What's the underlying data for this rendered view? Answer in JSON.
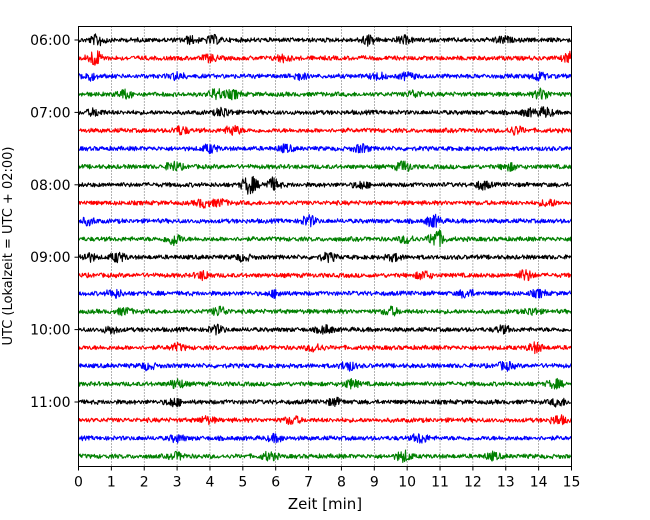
{
  "chart_data": {
    "type": "line",
    "xlabel": "Zeit  [min]",
    "ylabel": "UTC (Lokalzeit = UTC + 02:00)",
    "xlim": [
      0,
      15
    ],
    "x_ticks": [
      "0",
      "1",
      "2",
      "3",
      "4",
      "5",
      "6",
      "7",
      "8",
      "9",
      "10",
      "11",
      "12",
      "13",
      "14",
      "15"
    ],
    "y_tick_labels": [
      "06:00",
      "07:00",
      "08:00",
      "09:00",
      "10:00",
      "11:00"
    ],
    "grid": "vertical-dotted",
    "trace_interval_minutes": 15,
    "traces": [
      {
        "start": "06:00",
        "color": "#000000",
        "events": [
          [
            0.6,
            0.8
          ],
          [
            3.4,
            0.5
          ],
          [
            4.1,
            0.6
          ],
          [
            8.8,
            0.7
          ],
          [
            9.9,
            0.5
          ],
          [
            12.9,
            0.5
          ]
        ]
      },
      {
        "start": "06:15",
        "color": "#ff0000",
        "events": [
          [
            0.5,
            1.2
          ],
          [
            4.0,
            0.5
          ],
          [
            6.2,
            0.5
          ],
          [
            15.0,
            1.0
          ]
        ]
      },
      {
        "start": "06:30",
        "color": "#0000ff",
        "events": [
          [
            0.3,
            0.6
          ],
          [
            3.0,
            0.5
          ],
          [
            6.7,
            0.5
          ],
          [
            9.1,
            0.5
          ],
          [
            10.0,
            0.5
          ],
          [
            14.0,
            0.6
          ]
        ]
      },
      {
        "start": "06:45",
        "color": "#008000",
        "events": [
          [
            1.4,
            0.6
          ],
          [
            4.2,
            0.8
          ],
          [
            4.7,
            0.6
          ],
          [
            10.2,
            0.5
          ],
          [
            14.1,
            0.8
          ]
        ]
      },
      {
        "start": "07:00",
        "color": "#000000",
        "events": [
          [
            0.5,
            0.5
          ],
          [
            4.4,
            0.7
          ],
          [
            13.7,
            0.5
          ],
          [
            14.2,
            0.7
          ]
        ]
      },
      {
        "start": "07:15",
        "color": "#ff0000",
        "events": [
          [
            3.1,
            0.6
          ],
          [
            4.7,
            0.7
          ],
          [
            13.3,
            0.6
          ]
        ]
      },
      {
        "start": "07:30",
        "color": "#0000ff",
        "events": [
          [
            4.0,
            0.6
          ],
          [
            6.3,
            0.5
          ],
          [
            8.6,
            0.6
          ]
        ]
      },
      {
        "start": "07:45",
        "color": "#008000",
        "events": [
          [
            2.9,
            0.7
          ],
          [
            9.9,
            0.8
          ],
          [
            13.1,
            0.5
          ]
        ]
      },
      {
        "start": "08:00",
        "color": "#000000",
        "events": [
          [
            5.2,
            1.4
          ],
          [
            5.9,
            0.9
          ],
          [
            8.6,
            0.5
          ],
          [
            12.3,
            0.6
          ]
        ]
      },
      {
        "start": "08:15",
        "color": "#ff0000",
        "events": [
          [
            3.8,
            0.6
          ],
          [
            4.3,
            0.5
          ],
          [
            14.3,
            0.5
          ]
        ]
      },
      {
        "start": "08:30",
        "color": "#0000ff",
        "events": [
          [
            0.3,
            0.5
          ],
          [
            7.0,
            0.8
          ],
          [
            10.8,
            0.9
          ]
        ]
      },
      {
        "start": "08:45",
        "color": "#008000",
        "events": [
          [
            2.9,
            0.9
          ],
          [
            10.0,
            0.6
          ],
          [
            10.9,
            1.4
          ]
        ]
      },
      {
        "start": "09:00",
        "color": "#000000",
        "events": [
          [
            0.3,
            0.6
          ],
          [
            1.2,
            0.7
          ],
          [
            5.0,
            0.5
          ],
          [
            7.6,
            0.6
          ],
          [
            9.6,
            0.5
          ]
        ]
      },
      {
        "start": "09:15",
        "color": "#ff0000",
        "events": [
          [
            3.8,
            0.6
          ],
          [
            10.5,
            0.6
          ],
          [
            13.6,
            0.8
          ]
        ]
      },
      {
        "start": "09:30",
        "color": "#0000ff",
        "events": [
          [
            1.1,
            0.6
          ],
          [
            6.0,
            0.5
          ],
          [
            11.8,
            0.6
          ],
          [
            14.0,
            0.5
          ]
        ]
      },
      {
        "start": "09:45",
        "color": "#008000",
        "events": [
          [
            1.4,
            0.5
          ],
          [
            4.3,
            0.7
          ],
          [
            9.5,
            0.6
          ],
          [
            13.8,
            0.5
          ]
        ]
      },
      {
        "start": "10:00",
        "color": "#000000",
        "events": [
          [
            1.0,
            0.5
          ],
          [
            4.2,
            0.6
          ],
          [
            7.5,
            0.6
          ],
          [
            12.9,
            0.5
          ]
        ]
      },
      {
        "start": "10:15",
        "color": "#ff0000",
        "events": [
          [
            3.0,
            0.5
          ],
          [
            7.2,
            0.6
          ],
          [
            13.9,
            0.7
          ]
        ]
      },
      {
        "start": "10:30",
        "color": "#0000ff",
        "events": [
          [
            2.1,
            0.5
          ],
          [
            8.2,
            0.7
          ],
          [
            13.0,
            0.6
          ]
        ]
      },
      {
        "start": "10:45",
        "color": "#008000",
        "events": [
          [
            3.0,
            0.7
          ],
          [
            8.3,
            0.6
          ],
          [
            14.5,
            0.6
          ]
        ]
      },
      {
        "start": "11:00",
        "color": "#000000",
        "events": [
          [
            2.9,
            0.6
          ],
          [
            7.8,
            0.5
          ],
          [
            14.6,
            0.6
          ]
        ]
      },
      {
        "start": "11:15",
        "color": "#ff0000",
        "events": [
          [
            3.9,
            0.5
          ],
          [
            6.5,
            0.6
          ],
          [
            14.6,
            0.7
          ]
        ]
      },
      {
        "start": "11:30",
        "color": "#0000ff",
        "events": [
          [
            3.0,
            0.5
          ],
          [
            6.0,
            0.5
          ],
          [
            10.4,
            0.7
          ]
        ]
      },
      {
        "start": "11:45",
        "color": "#008000",
        "events": [
          [
            3.0,
            0.5
          ],
          [
            5.8,
            0.6
          ],
          [
            9.9,
            0.8
          ],
          [
            12.6,
            0.5
          ]
        ]
      }
    ]
  }
}
